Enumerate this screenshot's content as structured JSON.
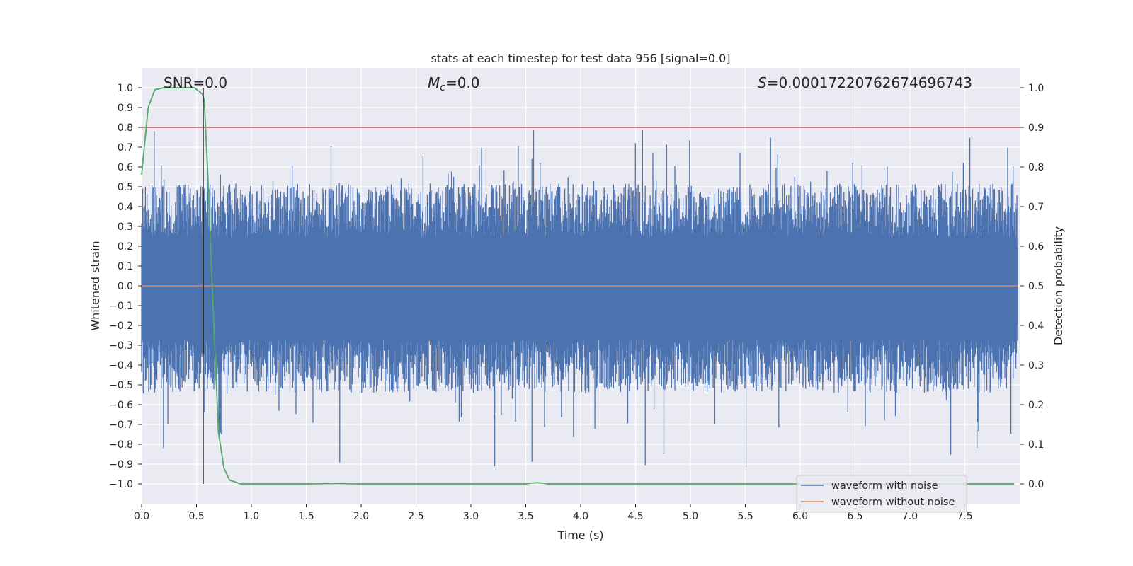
{
  "chart_data": {
    "type": "line",
    "title": "stats at each timestep for test data 956 [signal=0.0]",
    "xlabel": "Time (s)",
    "ylabel_left": "Whitened strain",
    "ylabel_right": "Detection probability",
    "xlim": [
      0.0,
      8.0
    ],
    "ylim_left": [
      -1.1,
      1.1
    ],
    "ylim_right": [
      -0.05,
      1.05
    ],
    "x_ticks": [
      "0.0",
      "0.5",
      "1.0",
      "1.5",
      "2.0",
      "2.5",
      "3.0",
      "3.5",
      "4.0",
      "4.5",
      "5.0",
      "5.5",
      "6.0",
      "6.5",
      "7.0",
      "7.5"
    ],
    "y_left_ticks": [
      "1.0",
      "0.9",
      "0.8",
      "0.7",
      "0.6",
      "0.5",
      "0.4",
      "0.3",
      "0.2",
      "0.1",
      "0.0",
      "−0.1",
      "−0.2",
      "−0.3",
      "−0.4",
      "−0.5",
      "−0.6",
      "−0.7",
      "−0.8",
      "−0.9",
      "−1.0"
    ],
    "y_right_ticks": [
      "1.0",
      "0.9",
      "0.8",
      "0.7",
      "0.6",
      "0.5",
      "0.4",
      "0.3",
      "0.2",
      "0.1",
      "0.0"
    ],
    "grid": true,
    "legend_position": "lower-right",
    "annotations": {
      "snr": "SNR=0.0",
      "mc_symbol": "M",
      "mc_sub": "c",
      "mc_value": "=0.0",
      "s_symbol": "S",
      "s_value": "=0.0001722076267469674​3"
    },
    "series": [
      {
        "name": "waveform with noise",
        "color": "#4c72b0",
        "axis": "left",
        "kind": "noise",
        "noise_envelope_typical": 0.45,
        "noise_peak_max": 0.99
      },
      {
        "name": "waveform without noise",
        "color": "#dd8452",
        "axis": "left",
        "kind": "flat",
        "value": 0.0
      },
      {
        "name": "detection probability",
        "color": "#55a868",
        "axis": "right",
        "x": [
          0.0,
          0.06,
          0.12,
          0.2,
          0.3,
          0.4,
          0.48,
          0.55,
          0.57,
          0.6,
          0.65,
          0.7,
          0.75,
          0.8,
          0.9,
          1.0,
          1.5,
          1.75,
          2.0,
          2.5,
          3.0,
          3.5,
          3.55,
          3.6,
          3.65,
          3.7,
          4.0,
          5.0,
          6.0,
          7.0,
          7.5,
          7.95
        ],
        "y": [
          0.78,
          0.95,
          0.995,
          1.0,
          1.0,
          1.0,
          1.0,
          0.985,
          0.97,
          0.8,
          0.45,
          0.13,
          0.04,
          0.01,
          0.0,
          0.0,
          0.0,
          0.001,
          0.0,
          0.0,
          0.0,
          0.0,
          0.002,
          0.003,
          0.002,
          0.0,
          0.0,
          0.0,
          0.0,
          0.0,
          0.0,
          0.0
        ]
      }
    ],
    "threshold_line": {
      "value": 0.9,
      "axis": "right",
      "color": "#c44e52"
    },
    "marker_line": {
      "x": 0.56,
      "y_from": -1.0,
      "y_to": 1.0,
      "color": "#000000"
    }
  }
}
